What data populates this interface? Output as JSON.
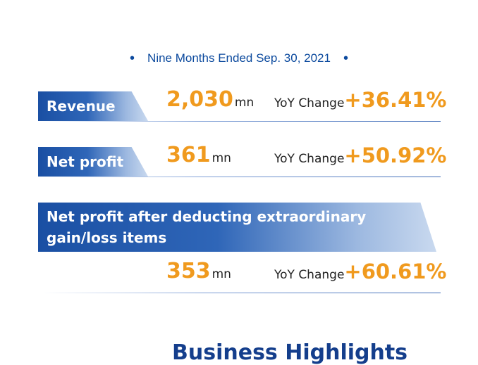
{
  "period": {
    "label": "Nine Months Ended Sep. 30, 2021"
  },
  "metrics": [
    {
      "label": "Revenue",
      "value": "2,030",
      "unit": "mn",
      "yoy_label": "YoY Change",
      "yoy": "+36.41%"
    },
    {
      "label": "Net profit",
      "value": "361",
      "unit": "mn",
      "yoy_label": "YoY Change",
      "yoy": "+50.92%"
    },
    {
      "label_line1": "Net profit after deducting extraordinary",
      "label_line2": "gain/loss items",
      "value": "353",
      "unit": "mn",
      "yoy_label": "YoY Change",
      "yoy": "+60.61%"
    }
  ],
  "section": {
    "title": "Business Highlights"
  },
  "colors": {
    "accent_blue": "#1a4fa3",
    "accent_orange": "#f09a1e"
  }
}
